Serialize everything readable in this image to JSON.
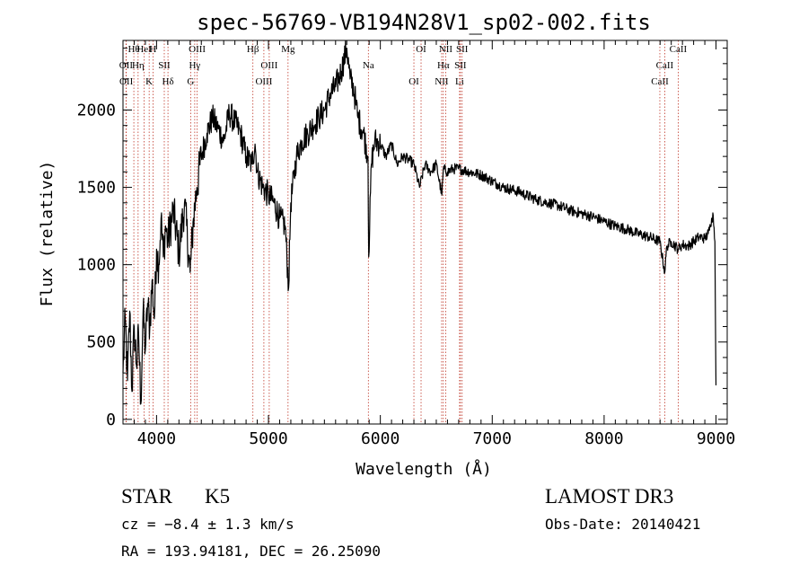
{
  "chart_data": {
    "type": "line",
    "title": "spec-56769-VB194N28V1_sp02-002.fits",
    "xlabel": "Wavelength (Å)",
    "ylabel": "Flux (relative)",
    "xlim": [
      3700,
      9100
    ],
    "ylim": [
      -30,
      2450
    ],
    "xticks": [
      "4000",
      "5000",
      "6000",
      "7000",
      "8000",
      "9000"
    ],
    "yticks": [
      "0",
      "500",
      "1000",
      "1500",
      "2000"
    ],
    "xtick_values": [
      4000,
      5000,
      6000,
      7000,
      8000,
      9000
    ],
    "ytick_values": [
      0,
      500,
      1000,
      1500,
      2000
    ],
    "grid": false,
    "series": [
      {
        "x": [
          3700,
          3720,
          3740,
          3760,
          3780,
          3800,
          3820,
          3840,
          3860,
          3880,
          3900,
          3920,
          3940,
          3960,
          3980,
          4000,
          4020,
          4040,
          4060,
          4080,
          4100,
          4150,
          4200,
          4250,
          4300,
          4330,
          4360,
          4400,
          4450,
          4500,
          4550,
          4600,
          4650,
          4700,
          4750,
          4800,
          4850,
          4880,
          4900,
          4950,
          5000,
          5050,
          5100,
          5150,
          5180,
          5200,
          5250,
          5300,
          5350,
          5400,
          5450,
          5500,
          5550,
          5600,
          5650,
          5700,
          5730,
          5760,
          5780,
          5800,
          5850,
          5890,
          5896,
          5920,
          5950,
          6000,
          6050,
          6100,
          6150,
          6200,
          6250,
          6300,
          6350,
          6400,
          6450,
          6500,
          6550,
          6563,
          6600,
          6650,
          6700,
          6750,
          6800,
          6850,
          6900,
          6950,
          7000,
          7050,
          7100,
          7150,
          7200,
          7250,
          7300,
          7400,
          7500,
          7600,
          7700,
          7800,
          7900,
          8000,
          8100,
          8200,
          8300,
          8400,
          8498,
          8542,
          8560,
          8600,
          8662,
          8700,
          8750,
          8800,
          8850,
          8900,
          8930,
          8950,
          8960,
          8975,
          8990,
          9000
        ],
        "y": [
          300,
          650,
          250,
          700,
          180,
          600,
          350,
          550,
          100,
          700,
          450,
          750,
          600,
          900,
          650,
          1100,
          1000,
          1300,
          1050,
          1250,
          1150,
          1350,
          1080,
          1400,
          950,
          1300,
          1500,
          1700,
          1850,
          1950,
          1880,
          1800,
          1980,
          1920,
          1850,
          1700,
          1650,
          1780,
          1600,
          1500,
          1450,
          1400,
          1300,
          1250,
          850,
          1400,
          1700,
          1800,
          1850,
          1900,
          1950,
          2000,
          2100,
          2150,
          2250,
          2400,
          2200,
          2150,
          2050,
          1950,
          1850,
          1700,
          1050,
          1650,
          1800,
          1780,
          1700,
          1780,
          1650,
          1700,
          1680,
          1650,
          1500,
          1650,
          1600,
          1650,
          1450,
          1620,
          1600,
          1620,
          1620,
          1610,
          1600,
          1590,
          1580,
          1560,
          1540,
          1520,
          1500,
          1490,
          1480,
          1470,
          1450,
          1420,
          1400,
          1380,
          1350,
          1330,
          1310,
          1280,
          1250,
          1230,
          1200,
          1180,
          1150,
          950,
          1120,
          1150,
          1100,
          1130,
          1120,
          1150,
          1180,
          1170,
          1200,
          1250,
          1300,
          1320,
          1150,
          220
        ]
      }
    ],
    "lines": [
      {
        "name": "Hθ",
        "x": 3797
      },
      {
        "name": "OII",
        "x": 3727
      },
      {
        "name": "OII",
        "x": 3729
      },
      {
        "name": "HeI",
        "x": 3889
      },
      {
        "name": "Hη",
        "x": 3835
      },
      {
        "name": "K",
        "x": 3934
      },
      {
        "name": "H",
        "x": 3968
      },
      {
        "name": "SII",
        "x": 4069
      },
      {
        "name": "Hδ",
        "x": 4102
      },
      {
        "name": "OIII",
        "x": 4363
      },
      {
        "name": "Hγ",
        "x": 4341
      },
      {
        "name": "G",
        "x": 4305
      },
      {
        "name": "Hβ",
        "x": 4861
      },
      {
        "name": "OIII",
        "x": 5007
      },
      {
        "name": "OIII",
        "x": 4959
      },
      {
        "name": "Mg",
        "x": 5175
      },
      {
        "name": "Na",
        "x": 5893
      },
      {
        "name": "OI",
        "x": 6300
      },
      {
        "name": "OI",
        "x": 6364
      },
      {
        "name": "Hα",
        "x": 6563
      },
      {
        "name": "NII",
        "x": 6548
      },
      {
        "name": "NII",
        "x": 6584
      },
      {
        "name": "SII",
        "x": 6716
      },
      {
        "name": "Li",
        "x": 6708
      },
      {
        "name": "SII",
        "x": 6731
      },
      {
        "name": "CaII",
        "x": 8542
      },
      {
        "name": "CaII",
        "x": 8498
      },
      {
        "name": "CaII",
        "x": 8662
      }
    ]
  },
  "footer": {
    "class_label": "STAR",
    "subclass_label": "K5",
    "survey": "LAMOST DR3",
    "redshift": "cz = −8.4 ± 1.3 km/s",
    "obs_date": "Obs-Date: 20140421",
    "coords": "RA = 193.94181, DEC =  26.25090"
  },
  "colors": {
    "spectrum": "#000000",
    "line_markers": "#c0392b",
    "axes": "#000000",
    "background": "#ffffff"
  }
}
